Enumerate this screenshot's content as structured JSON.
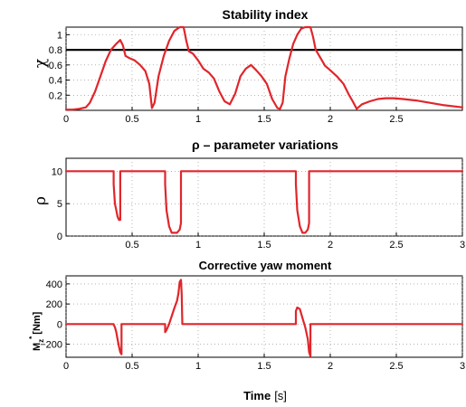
{
  "colors": {
    "series": "#e0262b",
    "threshold": "#000000",
    "frame": "#000000"
  },
  "figure": {
    "xlabel": "Time",
    "xlabel_unit": "[s]"
  },
  "chart_data": [
    {
      "type": "line",
      "title": "Stability index",
      "ylabel": "χ",
      "xlim": [
        0,
        3
      ],
      "ylim": [
        0,
        1.1
      ],
      "xticks": [
        "0",
        "0.5",
        "1",
        "1.5",
        "2",
        "2.5"
      ],
      "xtick_values": [
        0,
        0.5,
        1,
        1.5,
        2,
        2.5
      ],
      "yticks": [
        "0.2",
        "0.4",
        "0.6",
        "0.8",
        "1"
      ],
      "ytick_values": [
        0.2,
        0.4,
        0.6,
        0.8,
        1
      ],
      "grid": true,
      "threshold": 0.8,
      "x": [
        0,
        0.05,
        0.1,
        0.15,
        0.18,
        0.22,
        0.26,
        0.3,
        0.34,
        0.38,
        0.41,
        0.43,
        0.45,
        0.48,
        0.52,
        0.56,
        0.6,
        0.63,
        0.65,
        0.67,
        0.7,
        0.74,
        0.78,
        0.82,
        0.86,
        0.89,
        0.91,
        0.93,
        0.96,
        1.0,
        1.04,
        1.08,
        1.12,
        1.16,
        1.2,
        1.24,
        1.28,
        1.32,
        1.36,
        1.4,
        1.44,
        1.48,
        1.52,
        1.56,
        1.6,
        1.62,
        1.64,
        1.66,
        1.69,
        1.72,
        1.75,
        1.78,
        1.81,
        1.85,
        1.87,
        1.89,
        1.92,
        1.96,
        2.0,
        2.05,
        2.1,
        2.14,
        2.17,
        2.2,
        2.24,
        2.3,
        2.36,
        2.42,
        2.48,
        2.55,
        2.65,
        2.75,
        2.85,
        2.95,
        3.0
      ],
      "y": [
        0.01,
        0.01,
        0.02,
        0.04,
        0.1,
        0.25,
        0.45,
        0.65,
        0.8,
        0.88,
        0.93,
        0.86,
        0.72,
        0.69,
        0.66,
        0.6,
        0.52,
        0.35,
        0.03,
        0.1,
        0.45,
        0.72,
        0.92,
        1.05,
        1.1,
        1.1,
        0.92,
        0.78,
        0.75,
        0.66,
        0.55,
        0.5,
        0.42,
        0.25,
        0.12,
        0.08,
        0.22,
        0.45,
        0.55,
        0.6,
        0.53,
        0.45,
        0.35,
        0.15,
        0.03,
        0.02,
        0.1,
        0.45,
        0.68,
        0.88,
        1.0,
        1.08,
        1.1,
        1.1,
        0.97,
        0.8,
        0.71,
        0.59,
        0.53,
        0.45,
        0.35,
        0.21,
        0.12,
        0.02,
        0.08,
        0.12,
        0.15,
        0.16,
        0.16,
        0.15,
        0.13,
        0.1,
        0.07,
        0.05,
        0.04
      ]
    },
    {
      "type": "line",
      "title": "ρ – parameter variations",
      "ylabel": "ρ",
      "xlim": [
        0,
        3
      ],
      "ylim": [
        0,
        12
      ],
      "xticks": [
        "0.5",
        "1",
        "1.5",
        "2",
        "2.5",
        "3"
      ],
      "xtick_values": [
        0.5,
        1,
        1.5,
        2,
        2.5,
        3
      ],
      "yticks": [
        "0",
        "5",
        "10"
      ],
      "ytick_values": [
        0,
        5,
        10
      ],
      "grid": true,
      "x": [
        0,
        0.36,
        0.36,
        0.37,
        0.38,
        0.39,
        0.4,
        0.41,
        0.41,
        0.75,
        0.75,
        0.76,
        0.78,
        0.8,
        0.82,
        0.84,
        0.86,
        0.87,
        0.87,
        0.88,
        1.74,
        1.74,
        1.75,
        1.77,
        1.79,
        1.81,
        1.83,
        1.84,
        1.84,
        1.85,
        3.0
      ],
      "y": [
        10,
        10,
        8,
        5,
        4,
        3,
        2.5,
        2.5,
        10,
        10,
        8,
        4,
        1.5,
        0.5,
        0.5,
        0.5,
        1,
        2,
        10,
        10,
        10,
        8,
        4,
        1.5,
        0.5,
        0.5,
        1,
        2,
        10,
        10,
        10
      ]
    },
    {
      "type": "line",
      "title": "Corrective yaw moment",
      "ylabel": "M",
      "ylabel_sup": "*",
      "ylabel_sub": "z",
      "ylabel_unit": "[Nm]",
      "xlim": [
        0,
        3
      ],
      "ylim": [
        -330,
        480
      ],
      "xticks": [
        "0",
        "0.5",
        "1",
        "1.5",
        "2",
        "2.5",
        "3"
      ],
      "xtick_values": [
        0,
        0.5,
        1,
        1.5,
        2,
        2.5,
        3
      ],
      "yticks": [
        "−200",
        "0",
        "200",
        "400"
      ],
      "ytick_values": [
        -200,
        0,
        200,
        400
      ],
      "grid": true,
      "x": [
        0,
        0.36,
        0.36,
        0.37,
        0.38,
        0.39,
        0.4,
        0.41,
        0.42,
        0.42,
        0.75,
        0.75,
        0.76,
        0.78,
        0.8,
        0.82,
        0.84,
        0.85,
        0.86,
        0.87,
        0.875,
        0.88,
        1.74,
        1.74,
        1.75,
        1.77,
        1.79,
        1.81,
        1.83,
        1.84,
        1.85,
        1.85,
        3.0
      ],
      "y": [
        0,
        0,
        -5,
        -30,
        -80,
        -150,
        -220,
        -280,
        -300,
        0,
        0,
        -80,
        -60,
        0,
        80,
        160,
        230,
        300,
        420,
        440,
        300,
        0,
        0,
        130,
        165,
        150,
        60,
        -30,
        -150,
        -280,
        -320,
        0,
        0
      ]
    }
  ]
}
